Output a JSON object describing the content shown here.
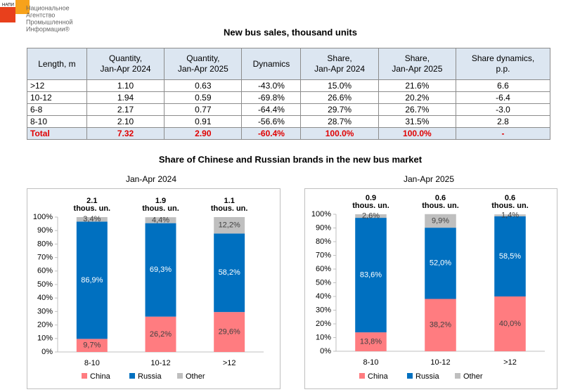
{
  "logo": {
    "abbr": "НАПИ",
    "lines": [
      "Национальное",
      "Агентство",
      "Промышленной",
      "Информации®"
    ]
  },
  "title": "New bus sales, thousand units",
  "table": {
    "header": [
      "Length, m",
      "Quantity,\nJan-Apr 2024",
      "Quantity,\nJan-Apr 2025",
      "Dynamics",
      "Share,\nJan-Apr 2024",
      "Share,\nJan-Apr 2025",
      "Share dynamics,\np.p."
    ],
    "rows": [
      [
        ">12",
        "1.10",
        "0.63",
        "-43.0%",
        "15.0%",
        "21.6%",
        "6.6"
      ],
      [
        "10-12",
        "1.94",
        "0.59",
        "-69.8%",
        "26.6%",
        "20.2%",
        "-6.4"
      ],
      [
        "6-8",
        "2.17",
        "0.77",
        "-64.4%",
        "29.7%",
        "26.7%",
        "-3.0"
      ],
      [
        "8-10",
        "2.10",
        "0.91",
        "-56.6%",
        "28.7%",
        "31.5%",
        "2.8"
      ]
    ],
    "total": [
      "Total",
      "7.32",
      "2.90",
      "-60.4%",
      "100.0%",
      "100.0%",
      "-"
    ]
  },
  "section_title": "Share of Chinese and Russian brands in the new bus market",
  "chart_data": [
    {
      "type": "stacked_bar",
      "title": "Jan-Apr 2024",
      "categories": [
        "8-10",
        "10-12",
        ">12"
      ],
      "annotations": [
        [
          "2.1",
          "thous. un."
        ],
        [
          "1.9",
          "thous. un."
        ],
        [
          "1.1",
          "thous. un."
        ]
      ],
      "series": [
        {
          "name": "China",
          "color": "#ff7c80",
          "label_color": "#404040",
          "values": [
            9.7,
            26.2,
            29.6
          ],
          "value_labels": [
            "9,7%",
            "26,2%",
            "29,6%"
          ]
        },
        {
          "name": "Russia",
          "color": "#0070c0",
          "label_color": "#ffffff",
          "values": [
            86.9,
            69.3,
            58.2
          ],
          "value_labels": [
            "86,9%",
            "69,3%",
            "58,2%"
          ]
        },
        {
          "name": "Other",
          "color": "#bfbfbf",
          "label_color": "#404040",
          "values": [
            3.4,
            4.4,
            12.2
          ],
          "value_labels": [
            "3,4%",
            "4,4%",
            "12,2%"
          ]
        }
      ],
      "ylim": [
        0,
        100
      ],
      "yticks": [
        {
          "value": 0,
          "label": "0%"
        },
        {
          "value": 10,
          "label": "10%"
        },
        {
          "value": 20,
          "label": "20%"
        },
        {
          "value": 30,
          "label": "30%"
        },
        {
          "value": 40,
          "label": "40%"
        },
        {
          "value": 50,
          "label": "50%"
        },
        {
          "value": 60,
          "label": "60%"
        },
        {
          "value": 70,
          "label": "70%"
        },
        {
          "value": 80,
          "label": "80%"
        },
        {
          "value": 90,
          "label": "90%"
        },
        {
          "value": 100,
          "label": "100%"
        }
      ],
      "legend": "bottom"
    },
    {
      "type": "stacked_bar",
      "title": "Jan-Apr 2025",
      "categories": [
        "8-10",
        "10-12",
        ">12"
      ],
      "annotations": [
        [
          "0.9",
          "thous. un."
        ],
        [
          "0.6",
          "thous. un."
        ],
        [
          "0.6",
          "thous. un."
        ]
      ],
      "series": [
        {
          "name": "China",
          "color": "#ff7c80",
          "label_color": "#404040",
          "values": [
            13.8,
            38.2,
            40.0
          ],
          "value_labels": [
            "13,8%",
            "38,2%",
            "40,0%"
          ]
        },
        {
          "name": "Russia",
          "color": "#0070c0",
          "label_color": "#ffffff",
          "values": [
            83.6,
            52.0,
            58.5
          ],
          "value_labels": [
            "83,6%",
            "52,0%",
            "58,5%"
          ]
        },
        {
          "name": "Other",
          "color": "#bfbfbf",
          "label_color": "#404040",
          "values": [
            2.6,
            9.9,
            1.4
          ],
          "value_labels": [
            "2,6%",
            "9,9%",
            "1,4%"
          ]
        }
      ],
      "ylim": [
        0,
        100
      ],
      "yticks": [
        {
          "value": 0,
          "label": "0%"
        },
        {
          "value": 10,
          "label": "10%"
        },
        {
          "value": 20,
          "label": "20%"
        },
        {
          "value": 30,
          "label": "30%"
        },
        {
          "value": 40,
          "label": "40%"
        },
        {
          "value": 50,
          "label": "50%"
        },
        {
          "value": 60,
          "label": "60%"
        },
        {
          "value": 70,
          "label": "70%"
        },
        {
          "value": 80,
          "label": "80%"
        },
        {
          "value": 90,
          "label": "90%"
        },
        {
          "value": 100,
          "label": "100%"
        }
      ],
      "legend": "bottom"
    }
  ]
}
